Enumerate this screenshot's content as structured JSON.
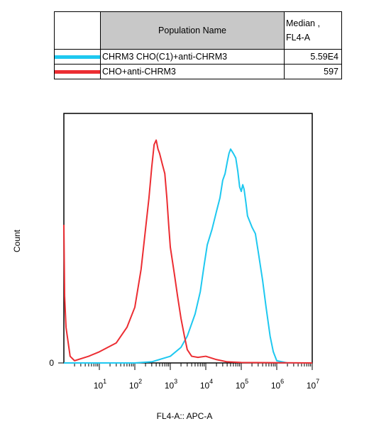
{
  "legend": {
    "header_name": "Population Name",
    "header_median_line1": "Median ,",
    "header_median_line2": "FL4-A",
    "rows": [
      {
        "name": "CHRM3 CHO(C1)+anti-CHRM3",
        "median": "5.59E4",
        "color": "#1ec8f0"
      },
      {
        "name": "CHO+anti-CHRM3",
        "median": "597",
        "color": "#ec2d32"
      }
    ]
  },
  "chart_data": {
    "type": "line",
    "xscale": "log",
    "xlim": [
      1,
      10000000
    ],
    "ylim": [
      0,
      1.12
    ],
    "xlabel": "FL4-A:: APC-A",
    "ylabel": "Count",
    "ytick_label": "0",
    "xtick_labels": [
      {
        "base": "10",
        "exp": "1"
      },
      {
        "base": "10",
        "exp": "2"
      },
      {
        "base": "10",
        "exp": "3"
      },
      {
        "base": "10",
        "exp": "4"
      },
      {
        "base": "10",
        "exp": "5"
      },
      {
        "base": "10",
        "exp": "6"
      },
      {
        "base": "10",
        "exp": "7"
      }
    ],
    "series": [
      {
        "name": "CHO+anti-CHRM3",
        "color": "#ec2d32",
        "points": [
          [
            1,
            0.62
          ],
          [
            1.05,
            0.3
          ],
          [
            1.15,
            0.16
          ],
          [
            1.3,
            0.1
          ],
          [
            1.5,
            0.03
          ],
          [
            2,
            0.01
          ],
          [
            5,
            0.03
          ],
          [
            10,
            0.05
          ],
          [
            30,
            0.09
          ],
          [
            60,
            0.16
          ],
          [
            100,
            0.25
          ],
          [
            150,
            0.42
          ],
          [
            200,
            0.6
          ],
          [
            250,
            0.74
          ],
          [
            300,
            0.88
          ],
          [
            350,
            0.98
          ],
          [
            400,
            1.0
          ],
          [
            450,
            0.96
          ],
          [
            500,
            0.94
          ],
          [
            600,
            0.89
          ],
          [
            700,
            0.85
          ],
          [
            800,
            0.74
          ],
          [
            900,
            0.62
          ],
          [
            1000,
            0.52
          ],
          [
            1300,
            0.4
          ],
          [
            1600,
            0.3
          ],
          [
            2000,
            0.2
          ],
          [
            2500,
            0.12
          ],
          [
            3000,
            0.06
          ],
          [
            4000,
            0.03
          ],
          [
            6000,
            0.025
          ],
          [
            10000,
            0.03
          ],
          [
            20000,
            0.015
          ],
          [
            40000,
            0.005
          ],
          [
            100000,
            0.002
          ],
          [
            10000000,
            0.0
          ]
        ]
      },
      {
        "name": "CHRM3 CHO(C1)+anti-CHRM3",
        "color": "#1ec8f0",
        "points": [
          [
            1,
            0.0
          ],
          [
            100,
            0.0
          ],
          [
            300,
            0.005
          ],
          [
            1000,
            0.03
          ],
          [
            2000,
            0.07
          ],
          [
            3000,
            0.12
          ],
          [
            5000,
            0.22
          ],
          [
            7000,
            0.32
          ],
          [
            9000,
            0.44
          ],
          [
            11000,
            0.53
          ],
          [
            15000,
            0.6
          ],
          [
            20000,
            0.68
          ],
          [
            25000,
            0.74
          ],
          [
            30000,
            0.82
          ],
          [
            35000,
            0.85
          ],
          [
            40000,
            0.9
          ],
          [
            45000,
            0.94
          ],
          [
            50000,
            0.96
          ],
          [
            60000,
            0.94
          ],
          [
            70000,
            0.92
          ],
          [
            80000,
            0.86
          ],
          [
            90000,
            0.79
          ],
          [
            100000,
            0.77
          ],
          [
            110000,
            0.8
          ],
          [
            120000,
            0.78
          ],
          [
            135000,
            0.72
          ],
          [
            150000,
            0.66
          ],
          [
            200000,
            0.61
          ],
          [
            250000,
            0.58
          ],
          [
            300000,
            0.5
          ],
          [
            400000,
            0.37
          ],
          [
            500000,
            0.25
          ],
          [
            650000,
            0.12
          ],
          [
            800000,
            0.05
          ],
          [
            1000000,
            0.01
          ],
          [
            2000000,
            0.0
          ],
          [
            10000000,
            0.0
          ]
        ]
      }
    ]
  }
}
